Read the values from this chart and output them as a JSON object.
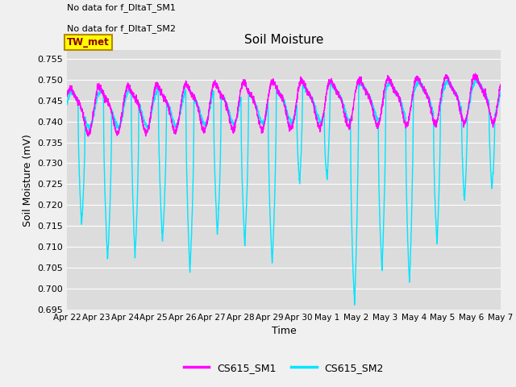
{
  "title": "Soil Moisture",
  "ylabel": "Soil Moisture (mV)",
  "xlabel": "Time",
  "ylim": [
    0.695,
    0.757
  ],
  "yticks": [
    0.695,
    0.7,
    0.705,
    0.71,
    0.715,
    0.72,
    0.725,
    0.73,
    0.735,
    0.74,
    0.745,
    0.75,
    0.755
  ],
  "bg_color": "#dcdcdc",
  "fig_color": "#f0f0f0",
  "line1_color": "#ff00ff",
  "line2_color": "#00e5ff",
  "legend1": "CS615_SM1",
  "legend2": "CS615_SM2",
  "no_data_text1": "No data for f_DltaT_SM1",
  "no_data_text2": "No data for f_DltaT_SM2",
  "tw_met_label": "TW_met",
  "tw_met_bg": "#ffff00",
  "tw_met_edge": "#b8860b",
  "tw_met_fg": "#8b0000",
  "x_tick_labels": [
    "Apr 22",
    "Apr 23",
    "Apr 24",
    "Apr 25",
    "Apr 26",
    "Apr 27",
    "Apr 28",
    "Apr 29",
    "Apr 30",
    "May 1",
    "May 2",
    "May 3",
    "May 4",
    "May 5",
    "May 6",
    "May 7"
  ],
  "drop_centers_sm2": [
    0.5,
    1.4,
    2.35,
    3.3,
    4.25,
    5.2,
    6.15,
    7.1,
    8.05,
    9.0,
    9.95,
    10.9,
    11.85,
    12.8,
    13.75,
    14.7
  ],
  "drop_depths_sm2": [
    0.028,
    0.038,
    0.038,
    0.035,
    0.043,
    0.035,
    0.038,
    0.042,
    0.022,
    0.02,
    0.048,
    0.038,
    0.04,
    0.03,
    0.02,
    0.018
  ],
  "drop_widths_sm2": [
    0.12,
    0.14,
    0.13,
    0.14,
    0.14,
    0.13,
    0.13,
    0.14,
    0.1,
    0.1,
    0.14,
    0.13,
    0.13,
    0.12,
    0.1,
    0.1
  ],
  "sm1_base": 0.743,
  "sm2_base": 0.743,
  "seed": 42
}
